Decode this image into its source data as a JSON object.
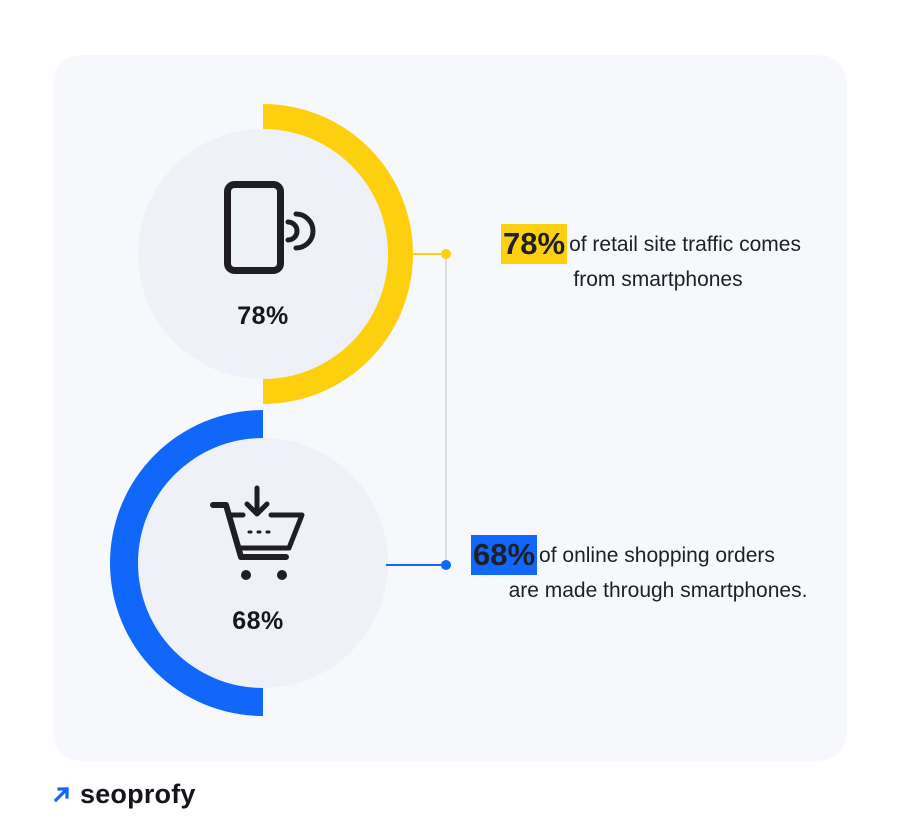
{
  "stats": [
    {
      "id": "traffic",
      "value_label": "78%",
      "highlight": "78%",
      "line1": "of retail site traffic comes",
      "line2": "from smartphones",
      "icon": "smartphone-icon",
      "color": "#fdd00f"
    },
    {
      "id": "orders",
      "value_label": "68%",
      "highlight": "68%",
      "line1": "of online shopping orders",
      "line2": "are made through smartphones.",
      "icon": "shopping-cart-download-icon",
      "color": "#1067fa"
    }
  ],
  "brand": {
    "name": "seoprofy",
    "icon": "arrow-up-right-icon",
    "color": "#1067fa"
  },
  "colors": {
    "card_bg": "#f6f8fb",
    "circle_bg": "#eef1f7",
    "connector": "#d9dce2"
  }
}
